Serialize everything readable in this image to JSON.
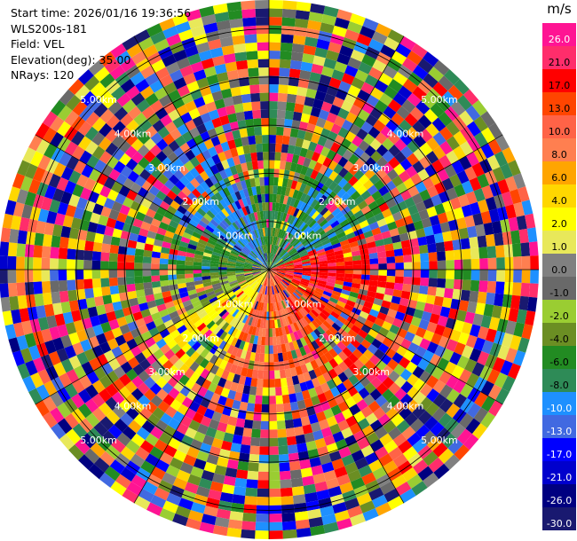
{
  "header": {
    "start_time_label": "Start time: 2026/01/16 19:36:56",
    "instrument": "WLS200s-181",
    "field_label": "Field: VEL",
    "elevation_label": "Elevation(deg): 35.00",
    "nrays_label": "NRays: 120"
  },
  "colorbar": {
    "unit": "m/s",
    "levels": [
      {
        "label": "26.0",
        "color": "#ff1493"
      },
      {
        "label": "21.0",
        "color": "#ff2d6b"
      },
      {
        "label": "17.0",
        "color": "#ff0000"
      },
      {
        "label": "13.0",
        "color": "#ff4500"
      },
      {
        "label": "10.0",
        "color": "#ff6347"
      },
      {
        "label": "8.0",
        "color": "#ff7f50"
      },
      {
        "label": "6.0",
        "color": "#ffa500"
      },
      {
        "label": "4.0",
        "color": "#ffd700"
      },
      {
        "label": "2.0",
        "color": "#ffff00"
      },
      {
        "label": "1.0",
        "color": "#e8e85a"
      },
      {
        "label": "0.0",
        "color": "#808080"
      },
      {
        "label": "-1.0",
        "color": "#696969"
      },
      {
        "label": "-2.0",
        "color": "#9acd32"
      },
      {
        "label": "-4.0",
        "color": "#6b8e23"
      },
      {
        "label": "-6.0",
        "color": "#228b22"
      },
      {
        "label": "-8.0",
        "color": "#2e8b57"
      },
      {
        "label": "-10.0",
        "color": "#1e90ff"
      },
      {
        "label": "-13.0",
        "color": "#4169e1"
      },
      {
        "label": "-17.0",
        "color": "#0000ff"
      },
      {
        "label": "-21.0",
        "color": "#0000cd"
      },
      {
        "label": "-26.0",
        "color": "#000080"
      },
      {
        "label": "-30.0",
        "color": "#191970"
      }
    ]
  },
  "range_rings": [
    {
      "km": 1,
      "label": "1.00km"
    },
    {
      "km": 2,
      "label": "2.00km"
    },
    {
      "km": 3,
      "label": "3.00km"
    },
    {
      "km": 4,
      "label": "4.00km"
    },
    {
      "km": 5,
      "label": "5.00km"
    }
  ],
  "ppi": {
    "rays": 120,
    "gates": 32,
    "max_range_km": 5.6
  }
}
